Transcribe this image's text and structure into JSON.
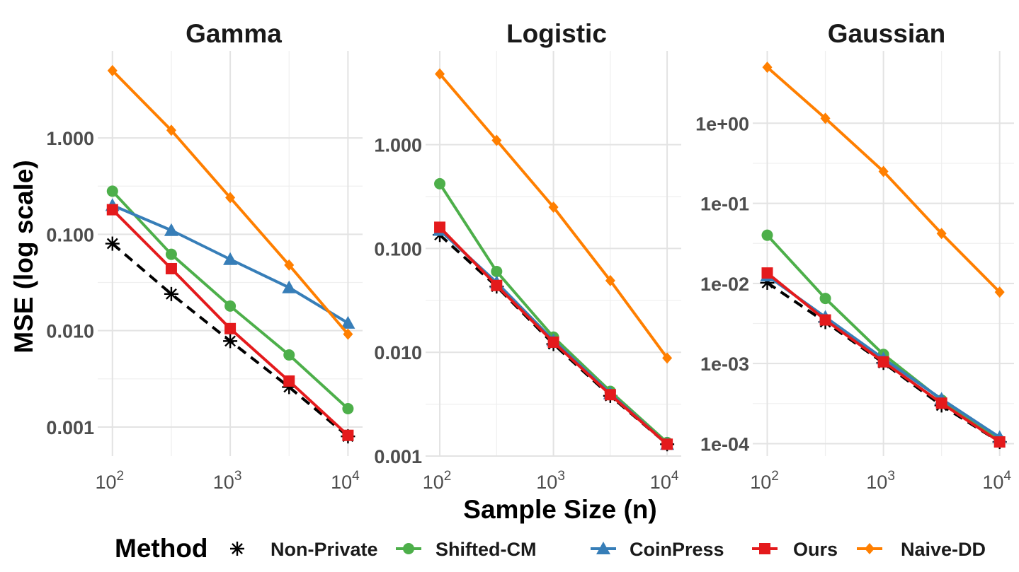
{
  "chart_data": {
    "type": "line",
    "ylabel": "MSE (log scale)",
    "xlabel": "Sample Size (n)",
    "x": [
      100,
      316.23,
      1000,
      3162.28,
      10000
    ],
    "x_tick_values": [
      100,
      1000,
      10000
    ],
    "x_tick_base": "10",
    "x_tick_exponents": [
      "2",
      "3",
      "4"
    ],
    "xscale": "log10",
    "yscale": "log10",
    "grid": true,
    "legend": {
      "title": "Method",
      "position": "bottom",
      "entries": [
        "Non-Private",
        "Shifted-CM",
        "CoinPress",
        "Ours",
        "Naive-DD"
      ]
    },
    "series_styles": {
      "Non-Private": {
        "color": "#000000",
        "marker": "asterisk",
        "dash": true
      },
      "Shifted-CM": {
        "color": "#4daf4a",
        "marker": "circle",
        "dash": false
      },
      "CoinPress": {
        "color": "#377eb8",
        "marker": "triangle",
        "dash": false
      },
      "Ours": {
        "color": "#e41a1c",
        "marker": "square",
        "dash": false
      },
      "Naive-DD": {
        "color": "#ff7f00",
        "marker": "diamond",
        "dash": false
      }
    },
    "panels": [
      {
        "title": "Gamma",
        "ylim": [
          0.0005,
          8
        ],
        "yticks": [
          0.001,
          0.01,
          0.1,
          1
        ],
        "ytick_labels": [
          "0.001",
          "0.010",
          "0.100",
          "1.000"
        ],
        "series": [
          {
            "name": "Non-Private",
            "values": [
              0.08,
              0.024,
              0.0078,
              0.0026,
              0.0008
            ]
          },
          {
            "name": "Shifted-CM",
            "values": [
              0.28,
              0.062,
              0.018,
              0.0056,
              0.00155
            ]
          },
          {
            "name": "CoinPress",
            "values": [
              0.2,
              0.11,
              0.055,
              0.028,
              0.012
            ]
          },
          {
            "name": "Ours",
            "values": [
              0.18,
              0.044,
              0.0105,
              0.003,
              0.00082
            ]
          },
          {
            "name": "Naive-DD",
            "values": [
              5.0,
              1.2,
              0.24,
              0.048,
              0.0092
            ]
          }
        ]
      },
      {
        "title": "Logistic",
        "ylim": [
          0.001,
          8
        ],
        "yticks": [
          0.001,
          0.01,
          0.1,
          1
        ],
        "ytick_labels": [
          "0.001",
          "0.010",
          "0.100",
          "1.000"
        ],
        "series": [
          {
            "name": "Non-Private",
            "values": [
              0.135,
              0.043,
              0.012,
              0.0038,
              0.0013
            ]
          },
          {
            "name": "Shifted-CM",
            "values": [
              0.42,
              0.06,
              0.014,
              0.0042,
              0.00135
            ]
          },
          {
            "name": "CoinPress",
            "values": [
              0.15,
              0.047,
              0.013,
              0.004,
              0.0013
            ]
          },
          {
            "name": "Ours",
            "values": [
              0.16,
              0.044,
              0.0125,
              0.0039,
              0.0013
            ]
          },
          {
            "name": "Naive-DD",
            "values": [
              4.8,
              1.1,
              0.25,
              0.049,
              0.0088
            ]
          }
        ]
      },
      {
        "title": "Gaussian",
        "ylim": [
          7e-05,
          8
        ],
        "yticks": [
          0.0001,
          0.001,
          0.01,
          0.1,
          1
        ],
        "ytick_labels": [
          "1e-04",
          "1e-03",
          "1e-02",
          "1e-01",
          "1e+00"
        ],
        "series": [
          {
            "name": "Non-Private",
            "values": [
              0.0102,
              0.0033,
              0.00102,
              0.0003,
              0.000105
            ]
          },
          {
            "name": "Shifted-CM",
            "values": [
              0.04,
              0.0065,
              0.0013,
              0.00035,
              0.00011
            ]
          },
          {
            "name": "CoinPress",
            "values": [
              0.0125,
              0.0038,
              0.00115,
              0.00036,
              0.00012
            ]
          },
          {
            "name": "Ours",
            "values": [
              0.0135,
              0.0035,
              0.00105,
              0.00032,
              0.000105
            ]
          },
          {
            "name": "Naive-DD",
            "values": [
              5.0,
              1.15,
              0.25,
              0.042,
              0.0078
            ]
          }
        ]
      }
    ]
  }
}
